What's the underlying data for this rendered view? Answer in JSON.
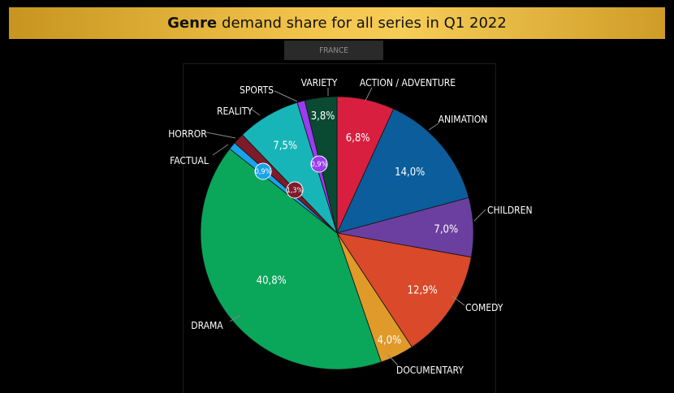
{
  "title": {
    "strong": "Genre",
    "rest": "demand share for all series in Q1 2022"
  },
  "subtitle": "FRANCE",
  "chart_data": {
    "type": "pie",
    "title": "Genre demand share for all series in Q1 2022",
    "subtitle": "FRANCE",
    "slices": [
      {
        "name": "ACTION / ADVENTURE",
        "value": 6.8,
        "label": "6,8%",
        "color": "#d81f3f"
      },
      {
        "name": "ANIMATION",
        "value": 14.0,
        "label": "14,0%",
        "color": "#0b5e9b"
      },
      {
        "name": "CHILDREN",
        "value": 7.0,
        "label": "7,0%",
        "color": "#6b3fa0"
      },
      {
        "name": "COMEDY",
        "value": 12.9,
        "label": "12,9%",
        "color": "#d9492a"
      },
      {
        "name": "DOCUMENTARY",
        "value": 4.0,
        "label": "4,0%",
        "color": "#e09a2a"
      },
      {
        "name": "DRAMA",
        "value": 40.8,
        "label": "40,8%",
        "color": "#0aa65a"
      },
      {
        "name": "FACTUAL",
        "value": 0.9,
        "label": "0,9%",
        "color": "#1aa3e8"
      },
      {
        "name": "HORROR",
        "value": 1.3,
        "label": "1,3%",
        "color": "#7e1b2a"
      },
      {
        "name": "REALITY",
        "value": 7.5,
        "label": "7,5%",
        "color": "#17b5b8"
      },
      {
        "name": "SPORTS",
        "value": 0.9,
        "label": "0,9%",
        "color": "#9b3cf0"
      },
      {
        "name": "VARIETY",
        "value": 3.8,
        "label": "3,8%",
        "color": "#0a4a33"
      }
    ]
  }
}
